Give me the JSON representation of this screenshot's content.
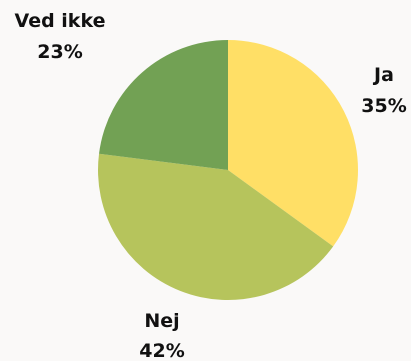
{
  "chart_data": {
    "type": "pie",
    "start_angle_deg": 0,
    "direction": "clockwise",
    "slices": [
      {
        "label": "Ja",
        "value": 35,
        "value_label": "35%",
        "color": "#ffdf66"
      },
      {
        "label": "Nej",
        "value": 42,
        "value_label": "42%",
        "color": "#b6c45c"
      },
      {
        "label": "Ved ikke",
        "value": 23,
        "value_label": "23%",
        "color": "#72a154"
      }
    ]
  }
}
